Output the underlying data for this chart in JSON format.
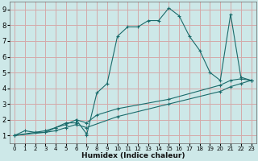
{
  "xlabel": "Humidex (Indice chaleur)",
  "xlim": [
    -0.5,
    23.5
  ],
  "ylim": [
    0.5,
    9.5
  ],
  "xticks": [
    0,
    1,
    2,
    3,
    4,
    5,
    6,
    7,
    8,
    9,
    10,
    11,
    12,
    13,
    14,
    15,
    16,
    17,
    18,
    19,
    20,
    21,
    22,
    23
  ],
  "yticks": [
    1,
    2,
    3,
    4,
    5,
    6,
    7,
    8,
    9
  ],
  "bg_color": "#cde8e8",
  "grid_color": "#d4aaaa",
  "line_color": "#1a6b6b",
  "line1_x": [
    0,
    1,
    2,
    3,
    4,
    5,
    6,
    6,
    7,
    7,
    8,
    9,
    10,
    11,
    12,
    13,
    14,
    15,
    16,
    17,
    18,
    19,
    20,
    21,
    22,
    23
  ],
  "line1_y": [
    1.0,
    1.3,
    1.2,
    1.2,
    1.5,
    1.8,
    1.8,
    2.0,
    1.1,
    1.0,
    3.7,
    4.3,
    7.3,
    7.9,
    7.9,
    8.3,
    8.3,
    9.1,
    8.6,
    7.3,
    6.4,
    5.0,
    4.5,
    8.7,
    4.7,
    4.5
  ],
  "line2_x": [
    0,
    3,
    4,
    5,
    6,
    7,
    8,
    10,
    15,
    20,
    21,
    22,
    23
  ],
  "line2_y": [
    1.0,
    1.3,
    1.5,
    1.7,
    2.0,
    1.8,
    2.3,
    2.7,
    3.3,
    4.2,
    4.5,
    4.6,
    4.5
  ],
  "line3_x": [
    0,
    3,
    4,
    5,
    6,
    7,
    10,
    15,
    20,
    21,
    22,
    23
  ],
  "line3_y": [
    1.0,
    1.2,
    1.3,
    1.5,
    1.7,
    1.5,
    2.2,
    3.0,
    3.8,
    4.1,
    4.3,
    4.5
  ]
}
